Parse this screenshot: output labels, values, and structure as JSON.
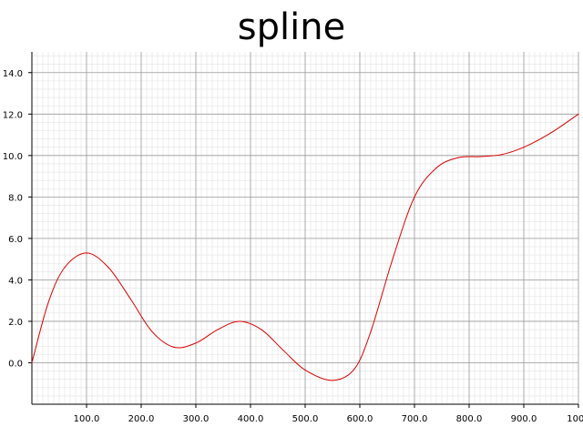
{
  "chart_data": {
    "type": "line",
    "title": "spline",
    "xlabel": "",
    "ylabel": "",
    "xlim": [
      0,
      1000
    ],
    "ylim": [
      -2,
      15
    ],
    "grid": true,
    "x_ticks": [
      100,
      200,
      300,
      400,
      500,
      600,
      700,
      800,
      900,
      1000
    ],
    "x_tick_labels": [
      "100.0",
      "200.0",
      "300.0",
      "400.0",
      "500.0",
      "600.0",
      "700.0",
      "800.0",
      "900.0",
      "1000"
    ],
    "y_ticks": [
      0,
      2,
      4,
      6,
      8,
      10,
      12,
      14
    ],
    "y_tick_labels": [
      "0.0",
      "2.0",
      "4.0",
      "6.0",
      "8.0",
      "10.0",
      "12.0",
      "14.0"
    ],
    "series": [
      {
        "color": "#dd0000",
        "x": [
          0,
          30,
          60,
          100,
          140,
          180,
          220,
          260,
          300,
          340,
          380,
          420,
          460,
          500,
          550,
          590,
          620,
          660,
          700,
          740,
          780,
          820,
          860,
          900,
          950,
          1000
        ],
        "y": [
          0.0,
          2.9,
          4.6,
          5.3,
          4.6,
          3.1,
          1.5,
          0.75,
          0.95,
          1.6,
          2.0,
          1.6,
          0.6,
          -0.35,
          -0.85,
          -0.3,
          1.5,
          5.0,
          8.0,
          9.4,
          9.9,
          9.95,
          10.05,
          10.4,
          11.1,
          12.0
        ]
      }
    ]
  }
}
